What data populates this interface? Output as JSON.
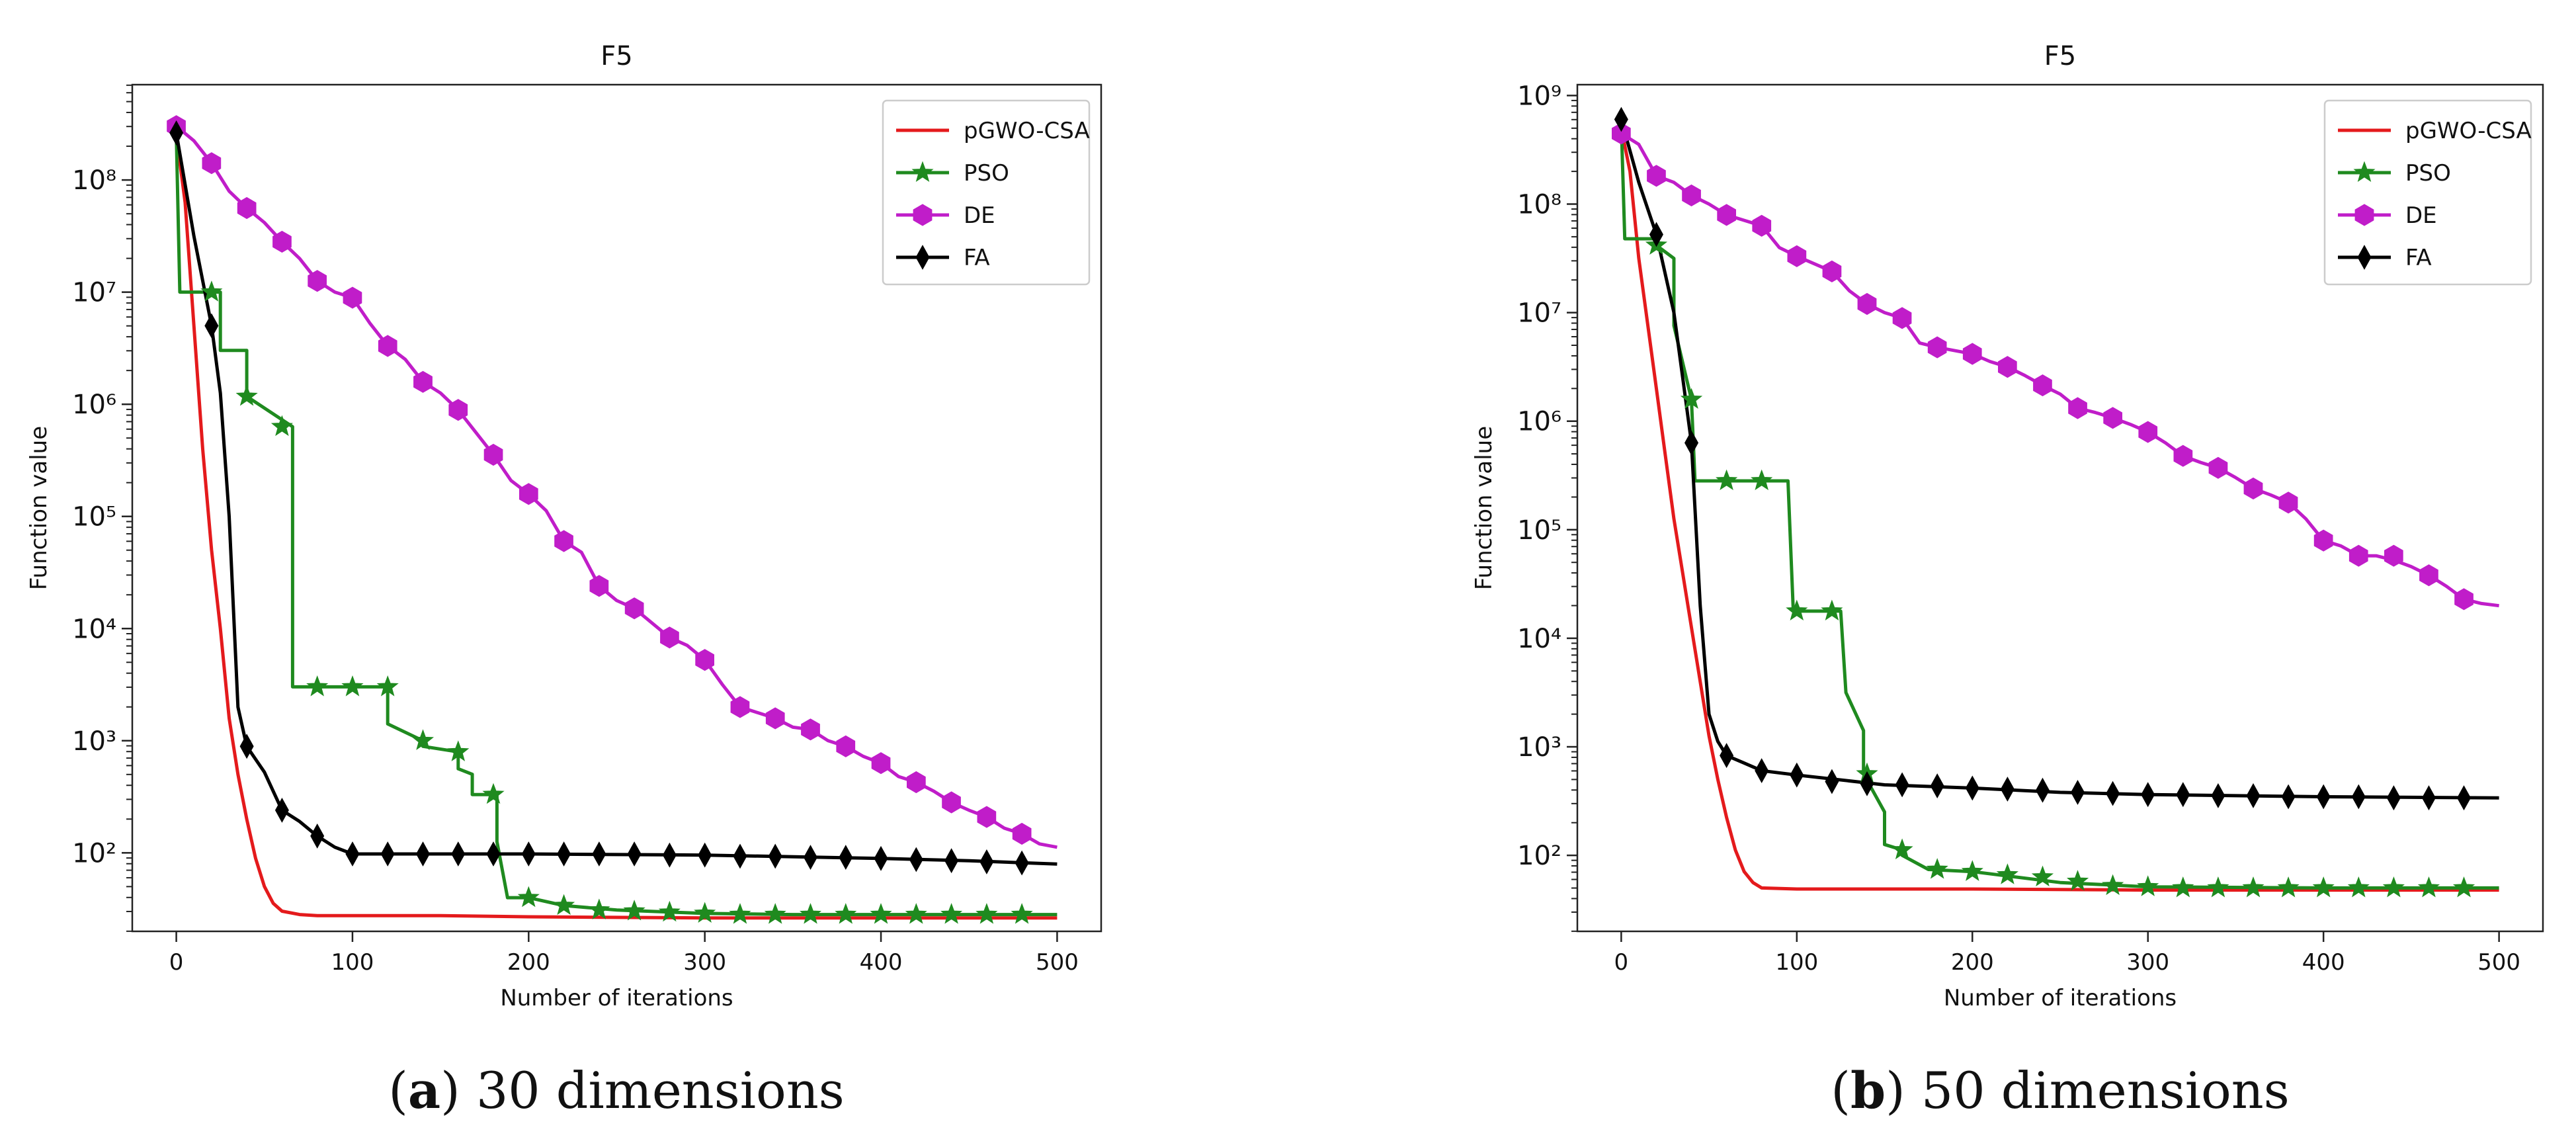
{
  "chart_data": [
    {
      "type": "line",
      "title": "F5",
      "xlabel": "Number of iterations",
      "ylabel": "Function value",
      "xlim": [
        -25,
        525
      ],
      "ylim_log10": [
        1.3,
        8.85
      ],
      "x_ticks": [
        0,
        100,
        200,
        300,
        400,
        500
      ],
      "x_tick_labels": [
        "0",
        "100",
        "200",
        "300",
        "400",
        "500"
      ],
      "y_ticks_log10": [
        2,
        3,
        4,
        5,
        6,
        7,
        8
      ],
      "y_tick_labels": [
        "10²",
        "10³",
        "10⁴",
        "10⁵",
        "10⁶",
        "10⁷",
        "10⁸"
      ],
      "legend_position": "top-right",
      "caption_letter": "a",
      "caption_text": "30 dimensions",
      "series": [
        {
          "name": "pGWO-CSA",
          "color": "#e41a1c",
          "marker": "none",
          "x": [
            0,
            5,
            10,
            15,
            20,
            25,
            30,
            35,
            40,
            45,
            50,
            55,
            60,
            70,
            80,
            100,
            150,
            200,
            300,
            400,
            500
          ],
          "log10_y": [
            8.4,
            7.8,
            6.7,
            5.6,
            4.7,
            4.0,
            3.2,
            2.7,
            2.3,
            1.95,
            1.7,
            1.55,
            1.48,
            1.45,
            1.44,
            1.44,
            1.44,
            1.43,
            1.42,
            1.42,
            1.42
          ]
        },
        {
          "name": "PSO",
          "color": "#1f8a1f",
          "marker": "star",
          "x": [
            0,
            2,
            25,
            25,
            40,
            40,
            66,
            66,
            120,
            120,
            140,
            140,
            160,
            160,
            168,
            168,
            182,
            182,
            188,
            188,
            200,
            220,
            250,
            300,
            350,
            400,
            450,
            500
          ],
          "log10_y": [
            8.4,
            7.0,
            7.0,
            6.48,
            6.48,
            6.07,
            5.8,
            3.48,
            3.48,
            3.15,
            3.0,
            2.95,
            2.9,
            2.75,
            2.7,
            2.52,
            2.52,
            2.1,
            1.6,
            1.6,
            1.6,
            1.53,
            1.49,
            1.46,
            1.45,
            1.45,
            1.45,
            1.45
          ],
          "marker_x": [
            20,
            40,
            60,
            80,
            100,
            120,
            140,
            160,
            180,
            200,
            220,
            240,
            260,
            280,
            300,
            320,
            340,
            360,
            380,
            400,
            420,
            440,
            460,
            480
          ],
          "marker_log10_y": [
            7.0,
            6.07,
            5.8,
            3.48,
            3.48,
            3.48,
            3.0,
            2.9,
            2.52,
            1.6,
            1.53,
            1.49,
            1.48,
            1.47,
            1.46,
            1.45,
            1.45,
            1.45,
            1.45,
            1.45,
            1.45,
            1.45,
            1.45,
            1.45
          ]
        },
        {
          "name": "DE",
          "color": "#c01dc9",
          "marker": "hexagon",
          "x": [
            0,
            10,
            20,
            30,
            40,
            50,
            60,
            70,
            80,
            90,
            100,
            110,
            120,
            130,
            140,
            150,
            160,
            170,
            180,
            190,
            200,
            210,
            220,
            230,
            240,
            250,
            260,
            270,
            280,
            290,
            300,
            310,
            320,
            330,
            340,
            350,
            360,
            370,
            380,
            390,
            400,
            410,
            420,
            430,
            440,
            450,
            460,
            470,
            480,
            490,
            500
          ],
          "log10_y": [
            8.48,
            8.35,
            8.15,
            7.9,
            7.75,
            7.62,
            7.45,
            7.3,
            7.1,
            7.0,
            6.95,
            6.72,
            6.52,
            6.4,
            6.2,
            6.1,
            5.95,
            5.75,
            5.55,
            5.32,
            5.2,
            5.05,
            4.78,
            4.68,
            4.38,
            4.25,
            4.18,
            4.05,
            3.92,
            3.85,
            3.72,
            3.5,
            3.3,
            3.25,
            3.2,
            3.12,
            3.1,
            3.0,
            2.95,
            2.86,
            2.8,
            2.68,
            2.63,
            2.55,
            2.45,
            2.38,
            2.32,
            2.22,
            2.17,
            2.08,
            2.05
          ],
          "marker_x": [
            0,
            20,
            40,
            60,
            80,
            100,
            120,
            140,
            160,
            180,
            200,
            220,
            240,
            260,
            280,
            300,
            320,
            340,
            360,
            380,
            400,
            420,
            440,
            460,
            480
          ],
          "marker_log10_y": [
            8.48,
            8.15,
            7.75,
            7.45,
            7.1,
            6.95,
            6.52,
            6.2,
            5.95,
            5.55,
            5.2,
            4.78,
            4.38,
            4.18,
            3.92,
            3.72,
            3.3,
            3.2,
            3.1,
            2.95,
            2.8,
            2.63,
            2.45,
            2.32,
            2.17
          ]
        },
        {
          "name": "FA",
          "color": "#000000",
          "marker": "diamond",
          "x": [
            0,
            10,
            20,
            25,
            30,
            35,
            40,
            50,
            60,
            70,
            80,
            90,
            100,
            150,
            200,
            300,
            400,
            450,
            500
          ],
          "log10_y": [
            8.42,
            7.5,
            6.7,
            6.1,
            5.0,
            3.3,
            2.95,
            2.72,
            2.38,
            2.28,
            2.15,
            2.05,
            1.99,
            1.99,
            1.99,
            1.98,
            1.95,
            1.93,
            1.9
          ],
          "marker_x": [
            0,
            20,
            40,
            60,
            80,
            100,
            120,
            140,
            160,
            180,
            200,
            220,
            240,
            260,
            280,
            300,
            320,
            340,
            360,
            380,
            400,
            420,
            440,
            460,
            480
          ],
          "marker_log10_y": [
            8.42,
            6.7,
            2.95,
            2.38,
            2.15,
            1.99,
            1.99,
            1.99,
            1.99,
            1.99,
            1.99,
            1.99,
            1.99,
            1.99,
            1.98,
            1.98,
            1.97,
            1.97,
            1.96,
            1.96,
            1.95,
            1.94,
            1.93,
            1.92,
            1.91
          ]
        }
      ]
    },
    {
      "type": "line",
      "title": "F5",
      "xlabel": "Number of iterations",
      "ylabel": "Function value",
      "xlim": [
        -25,
        525
      ],
      "ylim_log10": [
        1.3,
        9.1
      ],
      "x_ticks": [
        0,
        100,
        200,
        300,
        400,
        500
      ],
      "x_tick_labels": [
        "0",
        "100",
        "200",
        "300",
        "400",
        "500"
      ],
      "y_ticks_log10": [
        2,
        3,
        4,
        5,
        6,
        7,
        8,
        9
      ],
      "y_tick_labels": [
        "10²",
        "10³",
        "10⁴",
        "10⁵",
        "10⁶",
        "10⁷",
        "10⁸",
        "10⁹"
      ],
      "legend_position": "top-right",
      "caption_letter": "b",
      "caption_text": "50 dimensions",
      "series": [
        {
          "name": "pGWO-CSA",
          "color": "#e41a1c",
          "marker": "none",
          "x": [
            0,
            5,
            10,
            15,
            20,
            25,
            30,
            35,
            40,
            45,
            50,
            55,
            60,
            65,
            70,
            75,
            80,
            100,
            150,
            200,
            300,
            400,
            500
          ],
          "log10_y": [
            8.7,
            8.3,
            7.5,
            6.9,
            6.3,
            5.7,
            5.1,
            4.6,
            4.1,
            3.6,
            3.1,
            2.7,
            2.35,
            2.05,
            1.85,
            1.75,
            1.7,
            1.69,
            1.69,
            1.69,
            1.68,
            1.68,
            1.68
          ],
          "marker_x": [],
          "marker_log10_y": []
        },
        {
          "name": "PSO",
          "color": "#1f8a1f",
          "marker": "star",
          "x": [
            0,
            2,
            20,
            20,
            30,
            30,
            40,
            42,
            42,
            95,
            98,
            98,
            125,
            128,
            128,
            138,
            138,
            150,
            150,
            160,
            160,
            175,
            175,
            200,
            250,
            300,
            400,
            500
          ],
          "log10_y": [
            8.75,
            7.68,
            7.68,
            7.62,
            7.5,
            6.88,
            6.2,
            5.45,
            5.45,
            5.45,
            4.25,
            4.25,
            4.25,
            3.5,
            3.5,
            3.15,
            2.75,
            2.4,
            2.1,
            2.05,
            2.0,
            1.87,
            1.87,
            1.85,
            1.75,
            1.71,
            1.7,
            1.7
          ],
          "marker_x": [
            20,
            40,
            60,
            80,
            100,
            120,
            140,
            160,
            180,
            200,
            220,
            240,
            260,
            280,
            300,
            320,
            340,
            360,
            380,
            400,
            420,
            440,
            460,
            480
          ],
          "marker_log10_y": [
            7.62,
            6.2,
            5.45,
            5.45,
            4.25,
            4.25,
            2.75,
            2.05,
            1.87,
            1.85,
            1.82,
            1.8,
            1.76,
            1.72,
            1.71,
            1.7,
            1.7,
            1.7,
            1.7,
            1.7,
            1.7,
            1.7,
            1.7,
            1.7
          ]
        },
        {
          "name": "DE",
          "color": "#c01dc9",
          "marker": "hexagon",
          "x": [
            0,
            10,
            20,
            30,
            40,
            50,
            60,
            70,
            80,
            90,
            100,
            110,
            120,
            130,
            140,
            150,
            160,
            170,
            180,
            190,
            200,
            210,
            220,
            230,
            240,
            250,
            260,
            270,
            280,
            290,
            300,
            310,
            320,
            330,
            340,
            350,
            360,
            370,
            380,
            390,
            400,
            410,
            420,
            430,
            440,
            450,
            460,
            470,
            480,
            490,
            500
          ],
          "log10_y": [
            8.65,
            8.55,
            8.26,
            8.2,
            8.08,
            8.0,
            7.9,
            7.85,
            7.8,
            7.6,
            7.52,
            7.45,
            7.38,
            7.2,
            7.08,
            7.0,
            6.95,
            6.72,
            6.68,
            6.65,
            6.62,
            6.55,
            6.5,
            6.42,
            6.33,
            6.25,
            6.12,
            6.08,
            6.03,
            5.97,
            5.9,
            5.8,
            5.68,
            5.62,
            5.57,
            5.48,
            5.38,
            5.32,
            5.25,
            5.1,
            4.9,
            4.85,
            4.76,
            4.76,
            4.72,
            4.66,
            4.58,
            4.48,
            4.36,
            4.32,
            4.3
          ],
          "marker_x": [
            0,
            20,
            40,
            60,
            80,
            100,
            120,
            140,
            160,
            180,
            200,
            220,
            240,
            260,
            280,
            300,
            320,
            340,
            360,
            380,
            400,
            420,
            440,
            460,
            480
          ],
          "marker_log10_y": [
            8.65,
            8.26,
            8.08,
            7.9,
            7.8,
            7.52,
            7.38,
            7.08,
            6.95,
            6.68,
            6.62,
            6.5,
            6.33,
            6.12,
            6.03,
            5.9,
            5.68,
            5.57,
            5.38,
            5.25,
            4.9,
            4.76,
            4.76,
            4.58,
            4.36
          ]
        },
        {
          "name": "FA",
          "color": "#000000",
          "marker": "diamond",
          "x": [
            0,
            10,
            20,
            30,
            35,
            40,
            45,
            50,
            55,
            60,
            70,
            80,
            100,
            150,
            200,
            250,
            300,
            400,
            500
          ],
          "log10_y": [
            8.78,
            8.2,
            7.72,
            7.0,
            6.4,
            5.8,
            4.3,
            3.3,
            3.05,
            2.92,
            2.85,
            2.78,
            2.74,
            2.65,
            2.62,
            2.58,
            2.56,
            2.54,
            2.53
          ],
          "marker_x": [
            0,
            20,
            40,
            60,
            80,
            100,
            120,
            140,
            160,
            180,
            200,
            220,
            240,
            260,
            280,
            300,
            320,
            340,
            360,
            380,
            400,
            420,
            440,
            460,
            480
          ],
          "marker_log10_y": [
            8.78,
            7.72,
            5.8,
            2.92,
            2.78,
            2.74,
            2.68,
            2.66,
            2.65,
            2.64,
            2.62,
            2.61,
            2.6,
            2.58,
            2.57,
            2.56,
            2.56,
            2.55,
            2.55,
            2.54,
            2.54,
            2.54,
            2.53,
            2.53,
            2.53
          ]
        }
      ]
    }
  ]
}
